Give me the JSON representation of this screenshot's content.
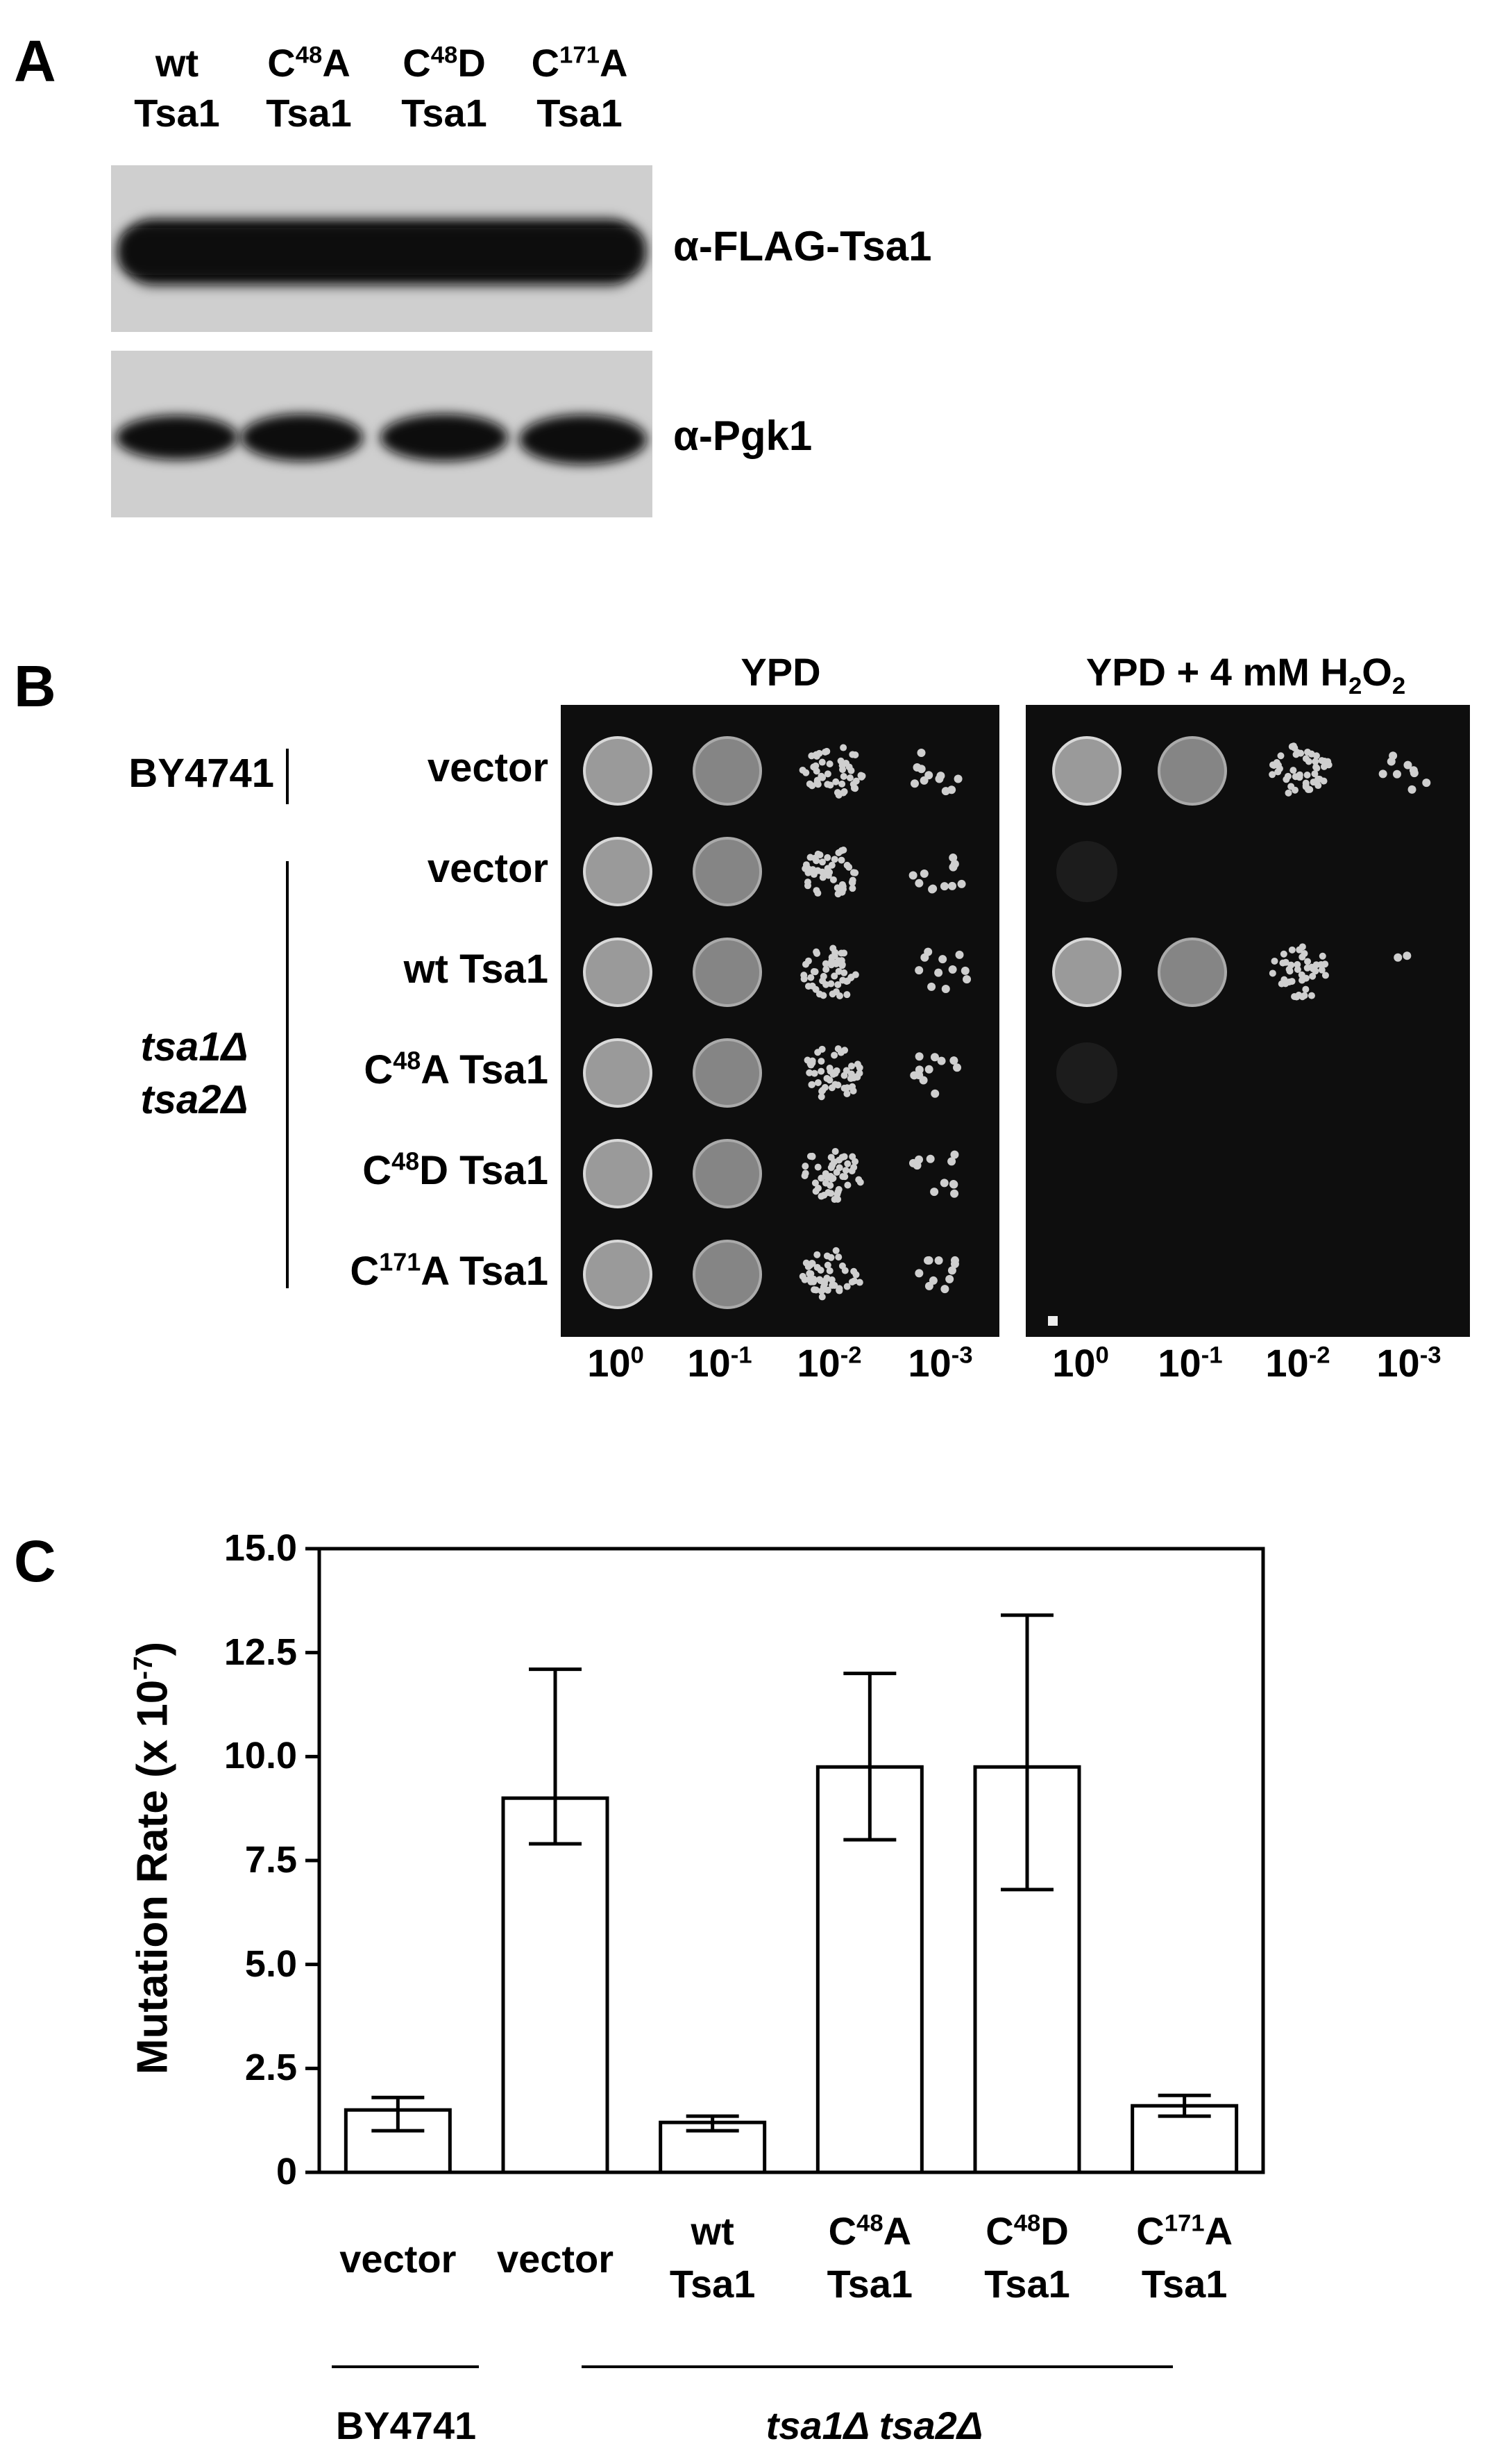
{
  "panelA": {
    "letter": "A",
    "lanes": [
      {
        "line1": "wt",
        "line2": "Tsa1",
        "sup": "",
        "base": "",
        "suffix": ""
      },
      {
        "line1": "",
        "line2": "Tsa1",
        "sup": "48",
        "base": "C",
        "suffix": "A"
      },
      {
        "line1": "",
        "line2": "Tsa1",
        "sup": "48",
        "base": "C",
        "suffix": "D"
      },
      {
        "line1": "",
        "line2": "Tsa1",
        "sup": "171",
        "base": "C",
        "suffix": "A"
      }
    ],
    "blots": [
      {
        "label": "α-FLAG-Tsa1"
      },
      {
        "label": "α-Pgk1"
      }
    ]
  },
  "panelB": {
    "letter": "B",
    "conditions": {
      "ypd": "YPD",
      "h2o2_prefix": "YPD + 4 mM H",
      "h2o2_sub1": "2",
      "h2o2_mid": "O",
      "h2o2_sub2": "2"
    },
    "background_strain": "BY4741",
    "mutant_line1": "tsa1Δ",
    "mutant_line2": "tsa2Δ",
    "rows": [
      {
        "base": "vector",
        "sup": "",
        "rest": ""
      },
      {
        "base": "vector",
        "sup": "",
        "rest": ""
      },
      {
        "base": "wt Tsa1",
        "sup": "",
        "rest": ""
      },
      {
        "base": "C",
        "sup": "48",
        "rest": "A Tsa1"
      },
      {
        "base": "C",
        "sup": "48",
        "rest": "D Tsa1"
      },
      {
        "base": "C",
        "sup": "171",
        "rest": "A Tsa1"
      }
    ],
    "dilutions": [
      {
        "base": "10",
        "exp": "0"
      },
      {
        "base": "10",
        "exp": "-1"
      },
      {
        "base": "10",
        "exp": "-2"
      },
      {
        "base": "10",
        "exp": "-3"
      }
    ],
    "growth_ypd": [
      [
        1.0,
        0.9,
        0.8,
        0.5
      ],
      [
        1.0,
        0.9,
        0.8,
        0.5
      ],
      [
        1.0,
        0.9,
        0.8,
        0.5
      ],
      [
        1.0,
        0.9,
        0.8,
        0.5
      ],
      [
        1.0,
        0.9,
        0.8,
        0.5
      ],
      [
        1.0,
        0.9,
        0.8,
        0.5
      ]
    ],
    "growth_h2o2": [
      [
        1.0,
        0.9,
        0.8,
        0.4
      ],
      [
        0.05,
        0,
        0,
        0
      ],
      [
        1.0,
        0.9,
        0.7,
        0.1
      ],
      [
        0.05,
        0,
        0,
        0
      ],
      [
        0,
        0,
        0,
        0
      ],
      [
        0,
        0,
        0,
        0
      ]
    ]
  },
  "panelC": {
    "letter": "C",
    "chart_data": {
      "type": "bar",
      "ylabel_prefix": "Mutation Rate (x 10",
      "ylabel_exp": "-7",
      "ylabel_suffix": ")",
      "ylim": [
        0,
        15.0
      ],
      "yticks": [
        "0",
        "2.5",
        "5.0",
        "7.5",
        "10.0",
        "12.5",
        "15.0"
      ],
      "ytick_values": [
        0,
        2.5,
        5.0,
        7.5,
        10.0,
        12.5,
        15.0
      ],
      "categories": [
        {
          "line1_base": "vector",
          "line1_sup": "",
          "line1_rest": "",
          "line2": ""
        },
        {
          "line1_base": "vector",
          "line1_sup": "",
          "line1_rest": "",
          "line2": ""
        },
        {
          "line1_base": "wt",
          "line1_sup": "",
          "line1_rest": "",
          "line2": "Tsa1"
        },
        {
          "line1_base": "C",
          "line1_sup": "48",
          "line1_rest": "A",
          "line2": "Tsa1"
        },
        {
          "line1_base": "C",
          "line1_sup": "48",
          "line1_rest": "D",
          "line2": "Tsa1"
        },
        {
          "line1_base": "C",
          "line1_sup": "171",
          "line1_rest": "A",
          "line2": "Tsa1"
        }
      ],
      "values": [
        1.5,
        9.0,
        1.2,
        9.75,
        9.75,
        1.6
      ],
      "err_low": [
        1.0,
        7.9,
        1.0,
        8.0,
        6.8,
        1.35
      ],
      "err_high": [
        1.8,
        12.1,
        1.35,
        12.0,
        13.4,
        1.85
      ],
      "groups": [
        {
          "label": "BY4741",
          "italic": false
        },
        {
          "label": "tsa1Δ tsa2Δ",
          "italic": true
        }
      ]
    }
  }
}
